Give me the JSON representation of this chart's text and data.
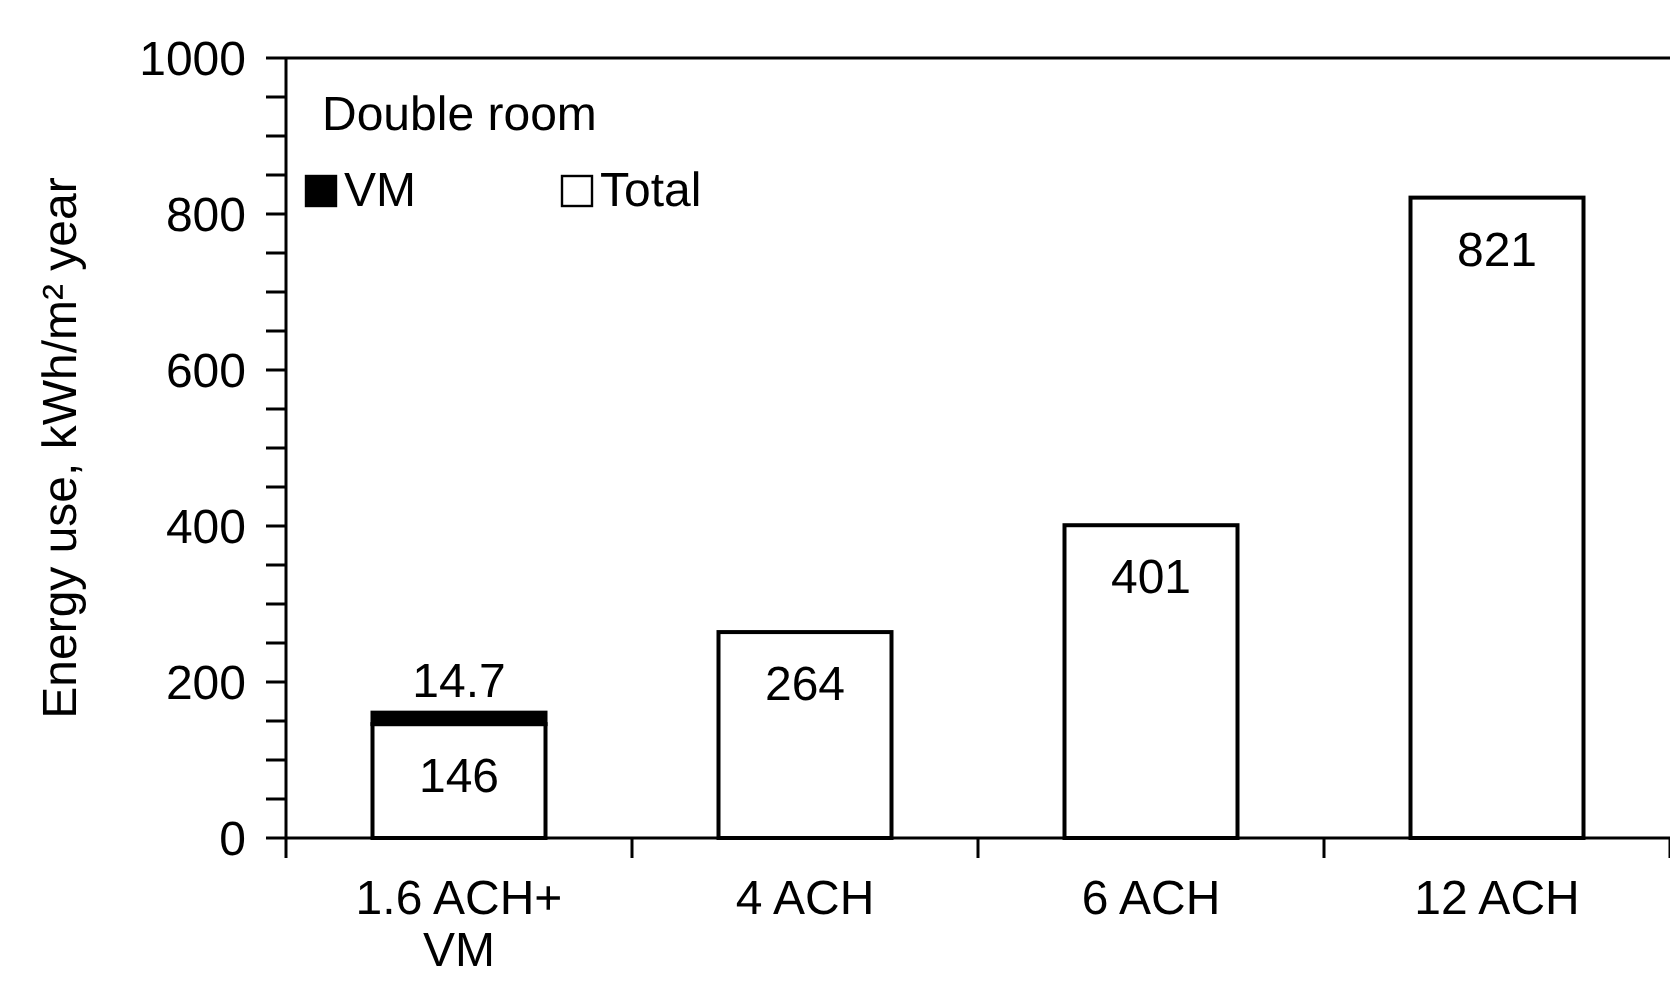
{
  "chart_data": {
    "type": "bar",
    "stacked": true,
    "legend_title": "Double room",
    "ylabel": "Energy use, kWh/m² year",
    "categories": [
      "1.6 ACH+\nVM",
      "4 ACH",
      "6 ACH",
      "12 ACH"
    ],
    "series": [
      {
        "name": "Total",
        "color": "#ffffff",
        "values": [
          146,
          264,
          401,
          821
        ]
      },
      {
        "name": "VM",
        "color": "#000000",
        "values": [
          14.7,
          null,
          null,
          null
        ]
      }
    ],
    "ylim": [
      0,
      1000
    ],
    "yticks": [
      0,
      {
        "value": 50,
        "label": null
      },
      200,
      {
        "value": 100,
        "label": null
      },
      {
        "value": 150,
        "label": null
      },
      {
        "value": 250,
        "label": null
      },
      {
        "value": 300,
        "label": null
      },
      {
        "value": 350,
        "label": null
      },
      400,
      {
        "value": 450,
        "label": null
      },
      {
        "value": 500,
        "label": null
      },
      {
        "value": 550,
        "label": null
      },
      600,
      {
        "value": 650,
        "label": null
      },
      {
        "value": 700,
        "label": null
      },
      {
        "value": 750,
        "label": null
      },
      800,
      {
        "value": 850,
        "label": null
      },
      {
        "value": 900,
        "label": null
      },
      {
        "value": 950,
        "label": null
      },
      1000
    ],
    "data_labels": true,
    "legend": "top left",
    "grid": false
  }
}
